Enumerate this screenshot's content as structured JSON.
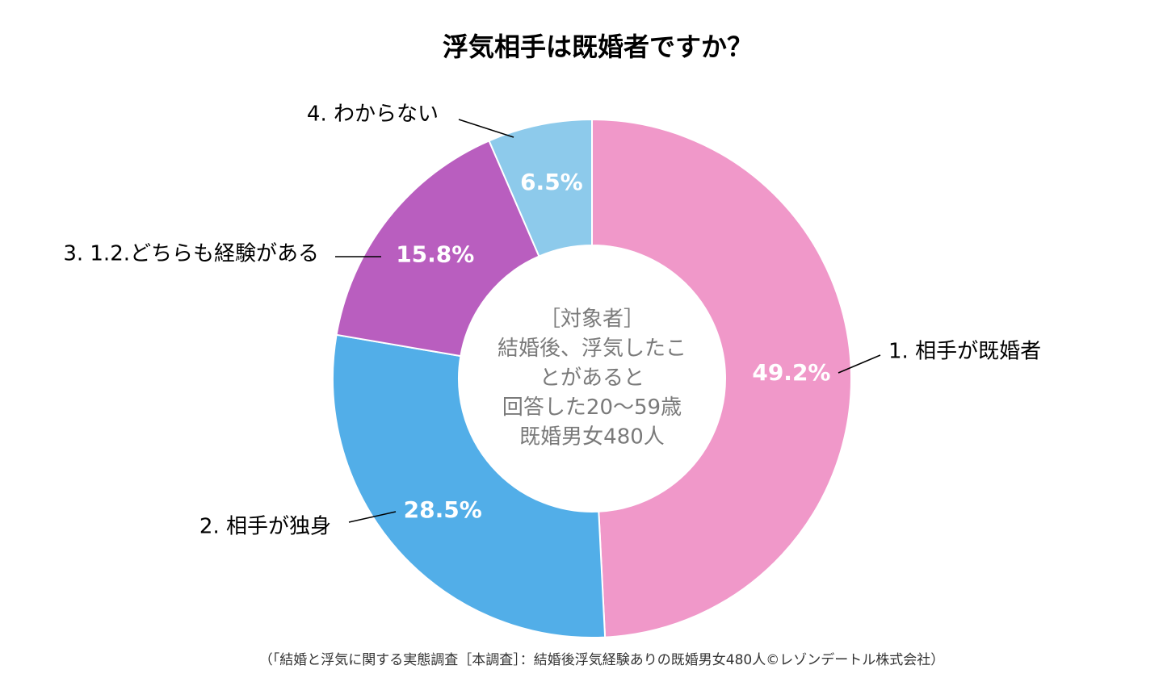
{
  "chart_data": {
    "type": "donut",
    "title": "浮気相手は既婚者ですか？",
    "categories": [
      "1. 相手が既婚者",
      "2. 相手が独身",
      "3. 1.2.どちらも経験がある",
      "4. わからない"
    ],
    "values": [
      49.2,
      28.5,
      15.8,
      6.5
    ],
    "value_labels": [
      "49.2%",
      "28.5%",
      "15.8%",
      "6.5%"
    ],
    "colors": [
      "#f098c9",
      "#52aee8",
      "#b95ebf",
      "#8dcaeb"
    ],
    "center_text": [
      "［対象者］",
      "結婚後、浮気したこ",
      "とがあると",
      "回答した20～59歳",
      "既婚男女480人"
    ],
    "source": "（「結婚と浮気に関する実態調査［本調査］：結婚後浮気経験ありの既婚男女480人©レゾンデートル株式会社）"
  }
}
